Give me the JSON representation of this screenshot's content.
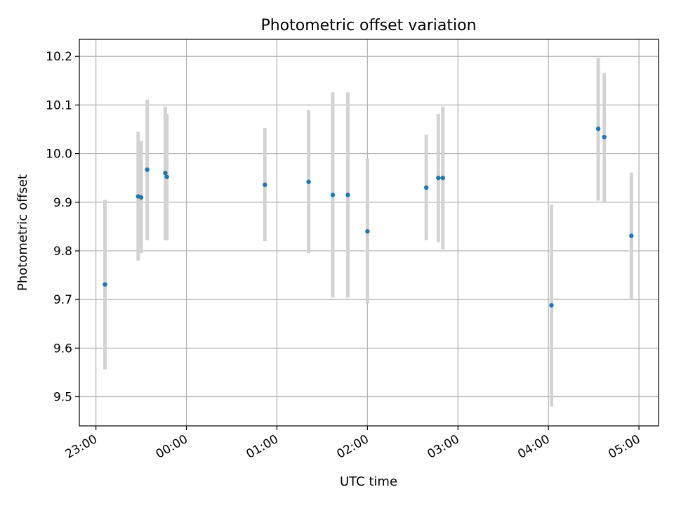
{
  "chart_data": {
    "type": "scatter",
    "title": "Photometric offset variation",
    "xlabel": "UTC time",
    "ylabel": "Photometric offset",
    "xlim": [
      "22:49",
      "05:13"
    ],
    "ylim": [
      9.44,
      10.235
    ],
    "x_ticks": [
      "23:00",
      "00:00",
      "01:00",
      "02:00",
      "03:00",
      "04:00",
      "05:00"
    ],
    "y_ticks": [
      9.5,
      9.6,
      9.7,
      9.8,
      9.9,
      10.0,
      10.1,
      10.2
    ],
    "y_tick_labels": [
      "9.5",
      "9.6",
      "9.7",
      "9.8",
      "9.9",
      "10.0",
      "10.1",
      "10.2"
    ],
    "grid": true,
    "series": [
      {
        "color": "#1f77b4",
        "error_color": "#d3d3d3",
        "points": [
          {
            "x": "23:06",
            "y": 9.731,
            "err_low": 9.556,
            "err_high": 9.905
          },
          {
            "x": "23:28",
            "y": 9.912,
            "err_low": 9.78,
            "err_high": 10.045
          },
          {
            "x": "23:30",
            "y": 9.91,
            "err_low": 9.795,
            "err_high": 10.026
          },
          {
            "x": "23:34",
            "y": 9.967,
            "err_low": 9.822,
            "err_high": 10.111
          },
          {
            "x": "23:46",
            "y": 9.96,
            "err_low": 9.822,
            "err_high": 10.097
          },
          {
            "x": "23:47",
            "y": 9.952,
            "err_low": 9.822,
            "err_high": 10.082
          },
          {
            "x": "00:52",
            "y": 9.936,
            "err_low": 9.82,
            "err_high": 10.053
          },
          {
            "x": "01:21",
            "y": 9.942,
            "err_low": 9.795,
            "err_high": 10.09
          },
          {
            "x": "01:37",
            "y": 9.915,
            "err_low": 9.704,
            "err_high": 10.126
          },
          {
            "x": "01:47",
            "y": 9.915,
            "err_low": 9.704,
            "err_high": 10.126
          },
          {
            "x": "02:00",
            "y": 9.84,
            "err_low": 9.692,
            "err_high": 9.99
          },
          {
            "x": "02:39",
            "y": 9.93,
            "err_low": 9.822,
            "err_high": 10.039
          },
          {
            "x": "02:47",
            "y": 9.95,
            "err_low": 9.818,
            "err_high": 10.082
          },
          {
            "x": "02:50",
            "y": 9.95,
            "err_low": 9.803,
            "err_high": 10.097
          },
          {
            "x": "04:02",
            "y": 9.688,
            "err_low": 9.48,
            "err_high": 9.895
          },
          {
            "x": "04:33",
            "y": 10.051,
            "err_low": 9.903,
            "err_high": 10.197
          },
          {
            "x": "04:37",
            "y": 10.034,
            "err_low": 9.9,
            "err_high": 10.166
          },
          {
            "x": "04:55",
            "y": 9.831,
            "err_low": 9.7,
            "err_high": 9.961
          }
        ]
      }
    ]
  }
}
